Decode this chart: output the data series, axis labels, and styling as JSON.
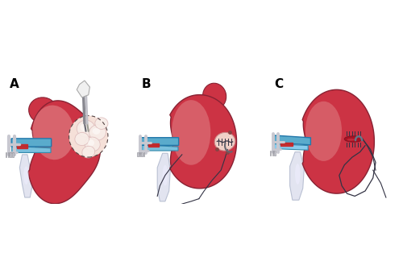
{
  "background_color": "#ffffff",
  "labels": [
    "A",
    "B",
    "C"
  ],
  "kidney_color_main": "#cc3344",
  "kidney_color_light": "#e8a0a0",
  "kidney_color_highlight": "#f0c0c0",
  "clamp_color": "#60aacc",
  "clamp_dark": "#3388aa",
  "metal_color": "#c8c8d0",
  "metal_dark": "#909098",
  "bone_color": "#dde0f0",
  "bone_shadow": "#b0b8d0",
  "suture_color": "#333344",
  "incision_fill": "#f0d0c8",
  "label_fontsize": 11,
  "fig_width": 5.0,
  "fig_height": 3.45,
  "dpi": 100
}
